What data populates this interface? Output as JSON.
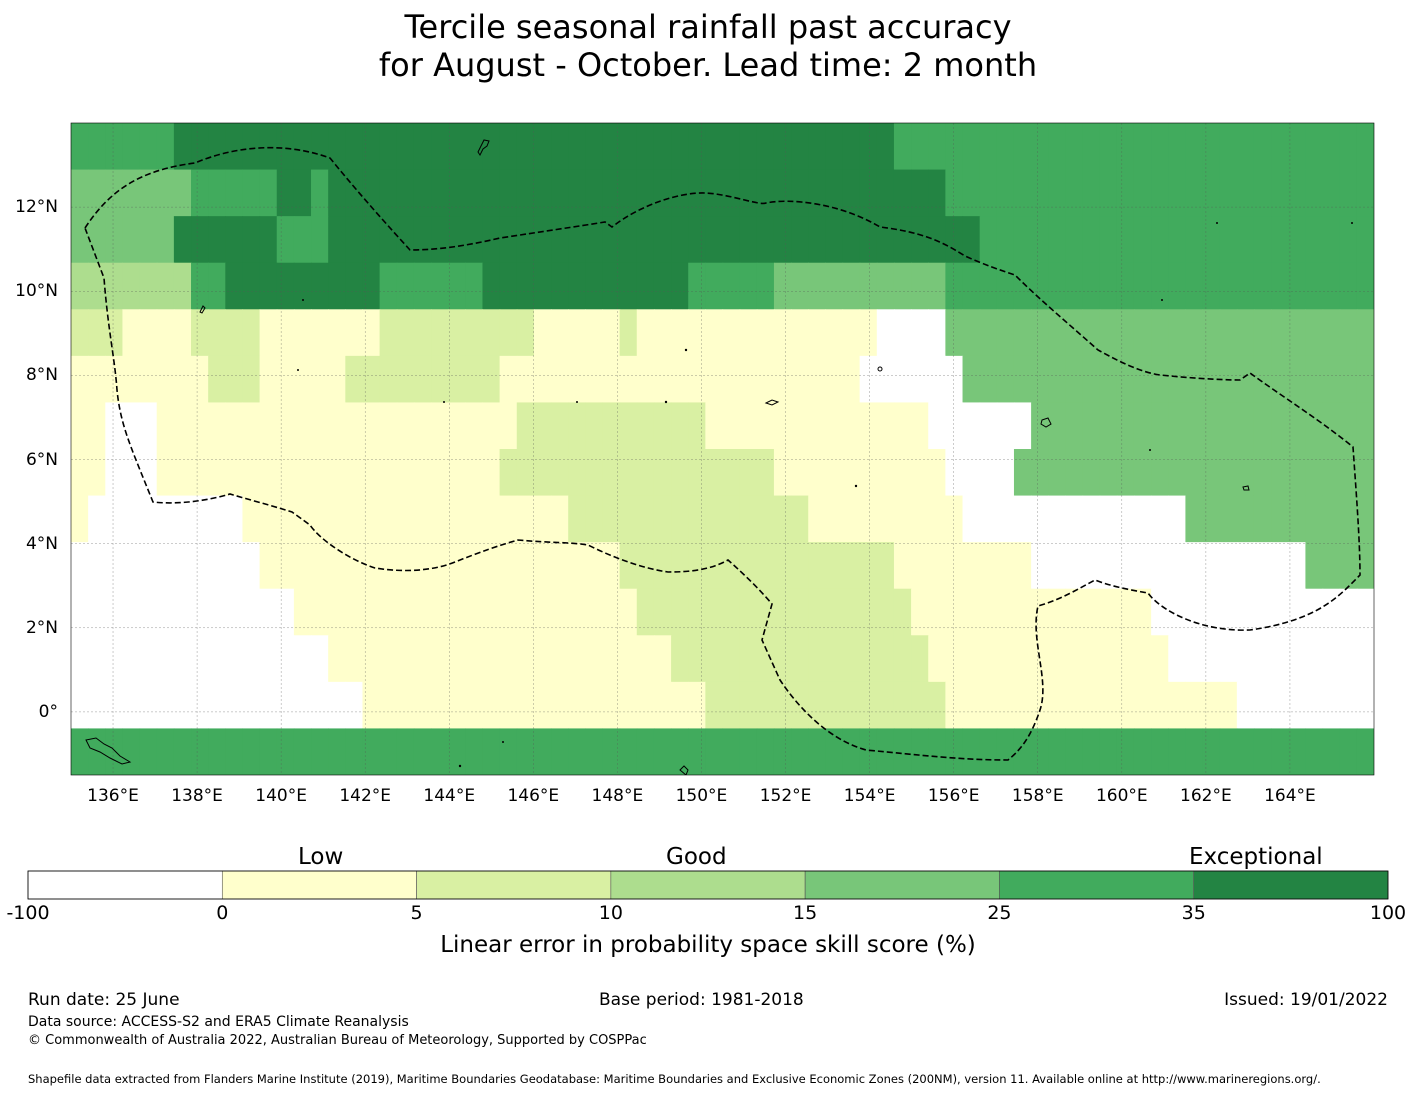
{
  "title": {
    "line1": "Tercile seasonal rainfall past accuracy",
    "line2": "for August - October. Lead time: 2 month"
  },
  "map": {
    "lon_labels": [
      "136°E",
      "138°E",
      "140°E",
      "142°E",
      "144°E",
      "146°E",
      "148°E",
      "150°E",
      "152°E",
      "154°E",
      "156°E",
      "158°E",
      "160°E",
      "162°E",
      "164°E"
    ],
    "lat_labels": [
      "12°N",
      "10°N",
      "8°N",
      "6°N",
      "4°N",
      "2°N",
      "0°"
    ],
    "lon_range": [
      135.0,
      166.0
    ],
    "lat_range": [
      -1.5,
      14.0
    ],
    "grid_resolution_deg": 0.83,
    "boundary": "dashed EEZ outline",
    "gridlines": true
  },
  "colorbar": {
    "boundaries": [
      "-100",
      "0",
      "5",
      "10",
      "15",
      "25",
      "35",
      "100"
    ],
    "colors": [
      "#ffffff",
      "#ffffcc",
      "#d9f0a3",
      "#addd8e",
      "#78c679",
      "#41ab5d",
      "#238443"
    ],
    "categories": {
      "low": "Low",
      "good": "Good",
      "exceptional": "Exceptional"
    },
    "title": "Linear error in probability space skill score (%)"
  },
  "footer": {
    "run_date": "Run date: 25 June",
    "base_period": "Base period: 1981-2018",
    "issued": "Issued: 19/01/2022",
    "data_source": "Data source: ACCESS-S2 and ERA5 Climate Reanalysis",
    "copyright": "© Commonwealth of Australia 2022, Australian Bureau of Meteorology, Supported by COSPPac",
    "shapefile": "Shapefile data extracted from Flanders Marine Institute (2019), Maritime Boundaries Geodatabase: Maritime Boundaries and Exclusive Economic Zones (200NM), version 11. Available online at http://www.marineregions.org/."
  },
  "chart_data": {
    "type": "heatmap",
    "x_label": "",
    "y_label": "",
    "x_range": [
      135.0,
      166.0
    ],
    "y_range": [
      -1.5,
      14.0
    ],
    "value_key": "0=-100..0, 1=0..5, 2=5..10, 3=10..15, 4=15..25, 5=25..35, 6=35..100",
    "rows_north_to_south": [
      "5555556666666666666666666666666666666666666666665555555555555555555555555555",
      "4444444555556656666666666666666666666666666666666665555555555555555555555555",
      "4444446666665556666666666666666666666666666666666666655555555555555555555555",
      "3333333556666666665555556666666666665555544444444445555555555555555555555555",
      "2221111222211111112222222221111121111111111111100004444444444444444444444444",
      "1111111122211111222222222111111111111111111111000000444444444444444444444444",
      "1100011111111111111111111122222222222111111111111100000044444444444444444444",
      "1100011111111111111111111222222222222222211111111110000444444444444444444444",
      "1000000000111111111111111111122222222222222111111111000000000000044444444444",
      "0000000000011111111111111111111122222222222222221111111100000000000000004444",
      "0000000000000111111111111111111112222222222222222111111111111110000000000000",
      "0000000000000001111111111111111111122222222222222211111111111111000000000000",
      "0000000000000000011111111111111111111222222222222221111111111111111100000000",
      "5555555555555555555555555555555555555555555555555555555555555555555555555555"
    ]
  }
}
